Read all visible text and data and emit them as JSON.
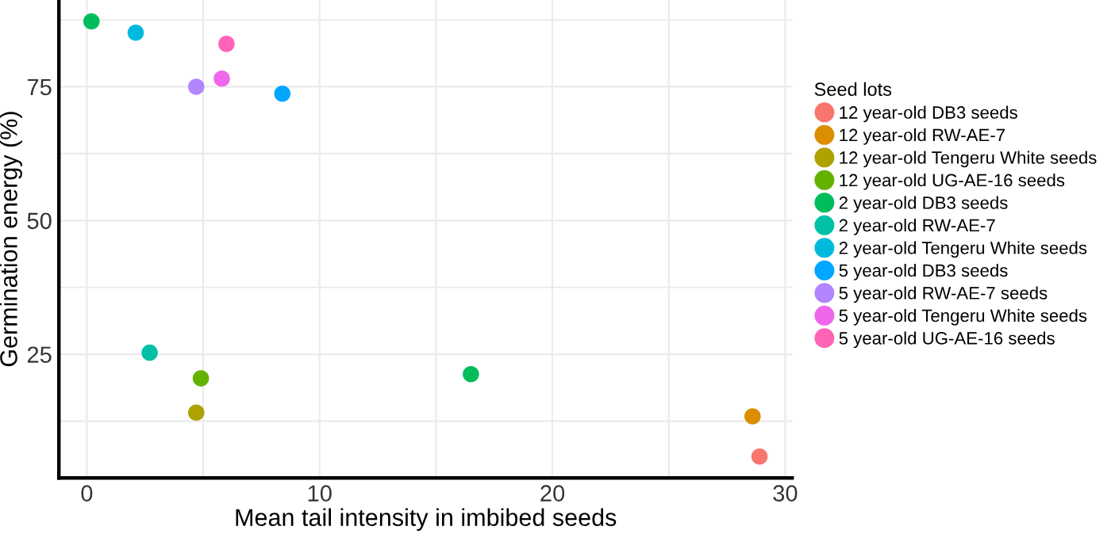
{
  "chart_data": {
    "type": "scatter",
    "xlabel": "Mean tail intensity in imbibed seeds",
    "ylabel": "Germination energy (%)",
    "legend_title": "Seed lots",
    "legend": "right",
    "grid": true,
    "marker": "circle",
    "xlim": [
      -1.2,
      30.3
    ],
    "ylim": [
      1.9,
      91.2
    ],
    "xticks": [
      0,
      {
        "value": 5,
        "label": null
      },
      10,
      {
        "value": 15,
        "label": null
      },
      20,
      {
        "value": 25,
        "label": null
      },
      30
    ],
    "yticks": [
      {
        "value": 12.5,
        "label": null
      },
      25,
      {
        "value": 37.5,
        "label": null
      },
      50,
      {
        "value": 62.5,
        "label": null
      },
      75,
      {
        "value": 87.5,
        "label": null
      }
    ],
    "series": [
      {
        "name": "12 year-old DB3 seeds",
        "color": "#f8766d",
        "x": [
          28.9
        ],
        "values": [
          5.9
        ]
      },
      {
        "name": "12 year-old RW-AE-7",
        "color": "#db8e00",
        "x": [
          28.6
        ],
        "values": [
          13.4
        ]
      },
      {
        "name": "12 year-old Tengeru White seeds",
        "color": "#aea200",
        "x": [
          4.7
        ],
        "values": [
          14.1
        ]
      },
      {
        "name": "12 year-old UG-AE-16 seeds",
        "color": "#64b200",
        "x": [
          4.9
        ],
        "values": [
          20.5
        ]
      },
      {
        "name": "2 year-old DB3 seeds",
        "color": "#00bd5c",
        "x": [
          0.2,
          16.5
        ],
        "values": [
          87.2,
          21.3
        ]
      },
      {
        "name": "2 year-old RW-AE-7",
        "color": "#00c1a7",
        "x": [
          2.7
        ],
        "values": [
          25.3
        ]
      },
      {
        "name": "2 year-old Tengeru White seeds",
        "color": "#00bade",
        "x": [
          2.1
        ],
        "values": [
          85.1
        ]
      },
      {
        "name": "5 year-old DB3 seeds",
        "color": "#00a6ff",
        "x": [
          8.4
        ],
        "values": [
          73.7
        ]
      },
      {
        "name": "5 year-old RW-AE-7 seeds",
        "color": "#b385ff",
        "x": [
          4.7
        ],
        "values": [
          75.0
        ]
      },
      {
        "name": "5 year-old Tengeru White seeds",
        "color": "#ef67eb",
        "x": [
          5.8
        ],
        "values": [
          76.5
        ]
      },
      {
        "name": "5 year-old UG-AE-16 seeds",
        "color": "#ff63b6",
        "x": [
          6.0
        ],
        "values": [
          83.0
        ]
      }
    ]
  }
}
